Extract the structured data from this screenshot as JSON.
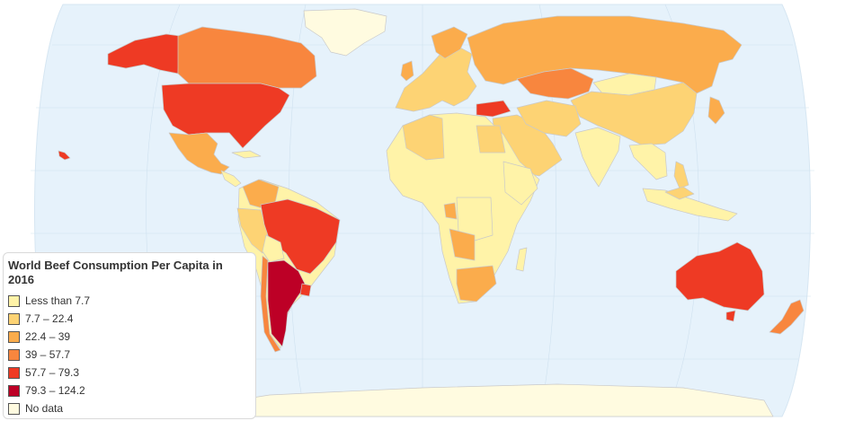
{
  "legend": {
    "title": "World Beef Consumption Per Capita in 2016",
    "items": [
      {
        "label": "Less than 7.7",
        "color": "#fff3a8"
      },
      {
        "label": "7.7 – 22.4",
        "color": "#fdd374"
      },
      {
        "label": "22.4 – 39",
        "color": "#fbac4c"
      },
      {
        "label": "39 – 57.7",
        "color": "#f8863e"
      },
      {
        "label": "57.7 – 79.3",
        "color": "#ee3a24"
      },
      {
        "label": "79.3 – 124.2",
        "color": "#bd0026"
      },
      {
        "label": "No data",
        "color": "#fffbe0"
      }
    ]
  },
  "colors": {
    "ocean": "#e6f2fb",
    "graticule": "#cfe1ef",
    "border": "#c9c9c9",
    "land_no_data": "#fffbe0"
  },
  "map_data": [
    {
      "region": "Argentina",
      "class": "79.3 – 124.2"
    },
    {
      "region": "United States",
      "class": "57.7 – 79.3"
    },
    {
      "region": "Brazil",
      "class": "57.7 – 79.3"
    },
    {
      "region": "Australia",
      "class": "57.7 – 79.3"
    },
    {
      "region": "Canada",
      "class": "39 – 57.7"
    },
    {
      "region": "Kazakhstan",
      "class": "39 – 57.7"
    },
    {
      "region": "Russia",
      "class": "22.4 – 39"
    },
    {
      "region": "Mexico",
      "class": "22.4 – 39"
    },
    {
      "region": "South Africa",
      "class": "22.4 – 39"
    },
    {
      "region": "China",
      "class": "7.7 – 22.4"
    },
    {
      "region": "India",
      "class": "Less than 7.7"
    }
  ]
}
